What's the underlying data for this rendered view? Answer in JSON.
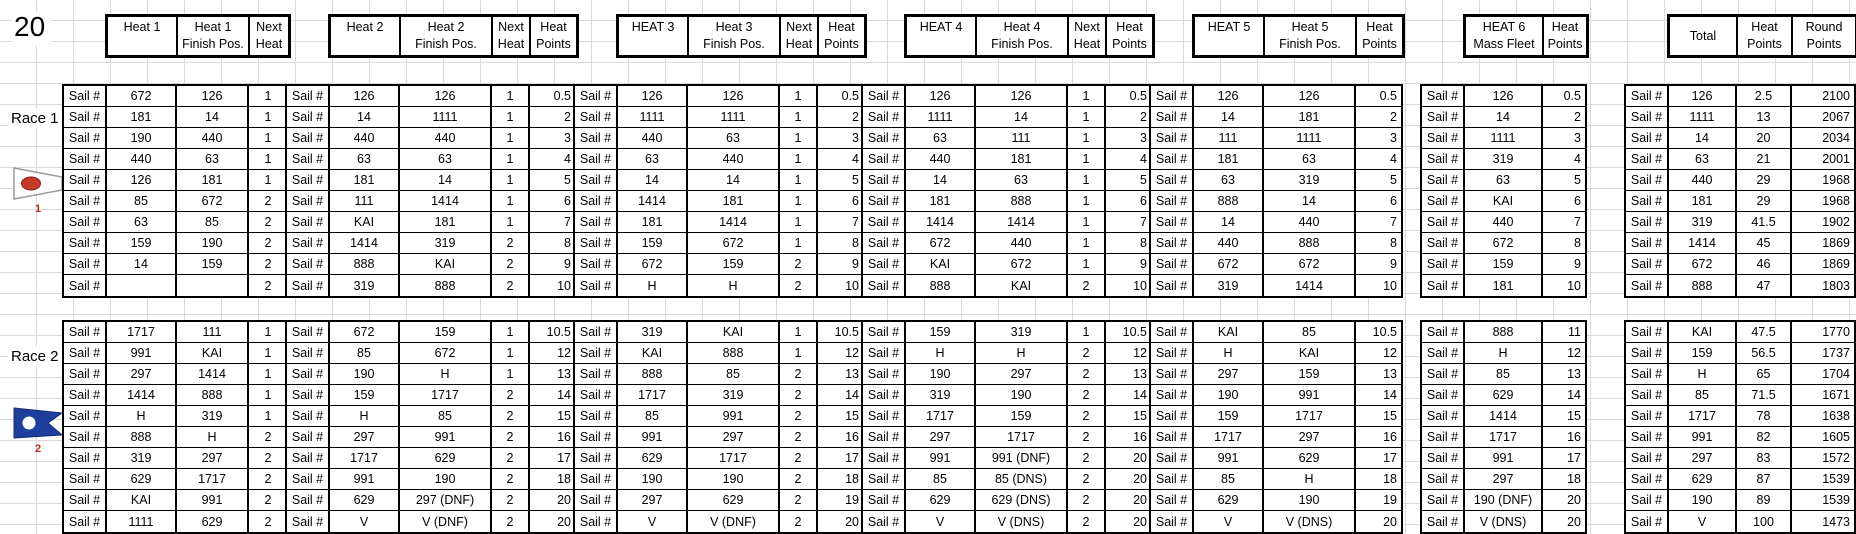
{
  "page": {
    "corner_number": "20"
  },
  "labels": {
    "sail": "Sail #"
  },
  "header_groups": [
    {
      "cols": [
        [
          "Heat 1",
          ""
        ],
        [
          "Heat 1",
          "Finish Pos."
        ],
        [
          "Next",
          "Heat"
        ]
      ]
    },
    {
      "cols": [
        [
          "Heat 2",
          ""
        ],
        [
          "Heat 2",
          "Finish Pos."
        ],
        [
          "Next",
          "Heat"
        ],
        [
          "Heat",
          "Points"
        ]
      ]
    },
    {
      "cols": [
        [
          "HEAT 3",
          ""
        ],
        [
          "Heat 3",
          "Finish Pos."
        ],
        [
          "Next",
          "Heat"
        ],
        [
          "Heat",
          "Points"
        ]
      ]
    },
    {
      "cols": [
        [
          "HEAT 4",
          ""
        ],
        [
          "Heat 4",
          "Finish Pos."
        ],
        [
          "Next",
          "Heat"
        ],
        [
          "Heat",
          "Points"
        ]
      ]
    },
    {
      "cols": [
        [
          "HEAT 5",
          ""
        ],
        [
          "Heat 5",
          "Finish Pos."
        ],
        [
          "Heat",
          "Points"
        ]
      ]
    },
    {
      "cols": [
        [
          "HEAT 6",
          "Mass Fleet"
        ],
        [
          "Heat",
          "Points"
        ]
      ]
    },
    {
      "cols": [
        [
          "Total",
          ""
        ],
        [
          "Heat",
          "Points"
        ],
        [
          "Round",
          "Points"
        ]
      ]
    }
  ],
  "races": [
    {
      "label": "Race 1",
      "flag_number": "1",
      "flag_color": "#c43b2a",
      "heats": {
        "heat1": [
          [
            "672",
            "126",
            "1"
          ],
          [
            "181",
            "14",
            "1"
          ],
          [
            "190",
            "440",
            "1"
          ],
          [
            "440",
            "63",
            "1"
          ],
          [
            "126",
            "181",
            "1"
          ],
          [
            "85",
            "672",
            "2"
          ],
          [
            "63",
            "85",
            "2"
          ],
          [
            "159",
            "190",
            "2"
          ],
          [
            "14",
            "159",
            "2"
          ],
          [
            "",
            "",
            "2"
          ]
        ],
        "heat2": [
          [
            "126",
            "126",
            "1",
            "0.5"
          ],
          [
            "14",
            "1111",
            "1",
            "2"
          ],
          [
            "440",
            "440",
            "1",
            "3"
          ],
          [
            "63",
            "63",
            "1",
            "4"
          ],
          [
            "181",
            "14",
            "1",
            "5"
          ],
          [
            "111",
            "1414",
            "1",
            "6"
          ],
          [
            "KAI",
            "181",
            "1",
            "7"
          ],
          [
            "1414",
            "319",
            "2",
            "8"
          ],
          [
            "888",
            "KAI",
            "2",
            "9"
          ],
          [
            "319",
            "888",
            "2",
            "10"
          ]
        ],
        "heat3": [
          [
            "126",
            "126",
            "1",
            "0.5"
          ],
          [
            "1111",
            "1111",
            "1",
            "2"
          ],
          [
            "440",
            "63",
            "1",
            "3"
          ],
          [
            "63",
            "440",
            "1",
            "4"
          ],
          [
            "14",
            "14",
            "1",
            "5"
          ],
          [
            "1414",
            "181",
            "1",
            "6"
          ],
          [
            "181",
            "1414",
            "1",
            "7"
          ],
          [
            "159",
            "672",
            "1",
            "8"
          ],
          [
            "672",
            "159",
            "2",
            "9"
          ],
          [
            "H",
            "H",
            "2",
            "10"
          ]
        ],
        "heat4": [
          [
            "126",
            "126",
            "1",
            "0.5"
          ],
          [
            "1111",
            "14",
            "1",
            "2"
          ],
          [
            "63",
            "111",
            "1",
            "3"
          ],
          [
            "440",
            "181",
            "1",
            "4"
          ],
          [
            "14",
            "63",
            "1",
            "5"
          ],
          [
            "181",
            "888",
            "1",
            "6"
          ],
          [
            "1414",
            "1414",
            "1",
            "7"
          ],
          [
            "672",
            "440",
            "1",
            "8"
          ],
          [
            "KAI",
            "672",
            "1",
            "9"
          ],
          [
            "888",
            "KAI",
            "2",
            "10"
          ]
        ],
        "heat5": [
          [
            "126",
            "126",
            "0.5"
          ],
          [
            "14",
            "181",
            "2"
          ],
          [
            "111",
            "1111",
            "3"
          ],
          [
            "181",
            "63",
            "4"
          ],
          [
            "63",
            "319",
            "5"
          ],
          [
            "888",
            "14",
            "6"
          ],
          [
            "14",
            "440",
            "7"
          ],
          [
            "440",
            "888",
            "8"
          ],
          [
            "672",
            "672",
            "9"
          ],
          [
            "319",
            "1414",
            "10"
          ]
        ],
        "heat6": [
          [
            "126",
            "0.5"
          ],
          [
            "14",
            "2"
          ],
          [
            "1111",
            "3"
          ],
          [
            "319",
            "4"
          ],
          [
            "63",
            "5"
          ],
          [
            "KAI",
            "6"
          ],
          [
            "440",
            "7"
          ],
          [
            "672",
            "8"
          ],
          [
            "159",
            "9"
          ],
          [
            "181",
            "10"
          ]
        ],
        "total": [
          [
            "126",
            "2.5",
            "2100"
          ],
          [
            "1111",
            "13",
            "2067"
          ],
          [
            "14",
            "20",
            "2034"
          ],
          [
            "63",
            "21",
            "2001"
          ],
          [
            "440",
            "29",
            "1968"
          ],
          [
            "181",
            "29",
            "1968"
          ],
          [
            "319",
            "41.5",
            "1902"
          ],
          [
            "1414",
            "45",
            "1869"
          ],
          [
            "672",
            "46",
            "1869"
          ],
          [
            "888",
            "47",
            "1803"
          ]
        ]
      }
    },
    {
      "label": "Race 2",
      "flag_number": "2",
      "flag_color": "#1e3e9e",
      "heats": {
        "heat1": [
          [
            "1717",
            "111",
            "1"
          ],
          [
            "991",
            "KAI",
            "1"
          ],
          [
            "297",
            "1414",
            "1"
          ],
          [
            "1414",
            "888",
            "1"
          ],
          [
            "H",
            "319",
            "1"
          ],
          [
            "888",
            "H",
            "2"
          ],
          [
            "319",
            "297",
            "2"
          ],
          [
            "629",
            "1717",
            "2"
          ],
          [
            "KAI",
            "991",
            "2"
          ],
          [
            "1111",
            "629",
            "2"
          ]
        ],
        "heat2": [
          [
            "672",
            "159",
            "1",
            "10.5"
          ],
          [
            "85",
            "672",
            "1",
            "12"
          ],
          [
            "190",
            "H",
            "1",
            "13"
          ],
          [
            "159",
            "1717",
            "2",
            "14"
          ],
          [
            "H",
            "85",
            "2",
            "15"
          ],
          [
            "297",
            "991",
            "2",
            "16"
          ],
          [
            "1717",
            "629",
            "2",
            "17"
          ],
          [
            "991",
            "190",
            "2",
            "18"
          ],
          [
            "629",
            "297 (DNF)",
            "2",
            "20"
          ],
          [
            "V",
            "V (DNF)",
            "2",
            "20"
          ]
        ],
        "heat3": [
          [
            "319",
            "KAI",
            "1",
            "10.5"
          ],
          [
            "KAI",
            "888",
            "1",
            "12"
          ],
          [
            "888",
            "85",
            "2",
            "13"
          ],
          [
            "1717",
            "319",
            "2",
            "14"
          ],
          [
            "85",
            "991",
            "2",
            "15"
          ],
          [
            "991",
            "297",
            "2",
            "16"
          ],
          [
            "629",
            "1717",
            "2",
            "17"
          ],
          [
            "190",
            "190",
            "2",
            "18"
          ],
          [
            "297",
            "629",
            "2",
            "19"
          ],
          [
            "V",
            "V (DNF)",
            "2",
            "20"
          ]
        ],
        "heat4": [
          [
            "159",
            "319",
            "1",
            "10.5"
          ],
          [
            "H",
            "H",
            "2",
            "12"
          ],
          [
            "190",
            "297",
            "2",
            "13"
          ],
          [
            "319",
            "190",
            "2",
            "14"
          ],
          [
            "1717",
            "159",
            "2",
            "15"
          ],
          [
            "297",
            "1717",
            "2",
            "16"
          ],
          [
            "991",
            "991 (DNF)",
            "2",
            "20"
          ],
          [
            "85",
            "85 (DNS)",
            "2",
            "20"
          ],
          [
            "629",
            "629 (DNS)",
            "2",
            "20"
          ],
          [
            "V",
            "V (DNS)",
            "2",
            "20"
          ]
        ],
        "heat5": [
          [
            "KAI",
            "85",
            "10.5"
          ],
          [
            "H",
            "KAI",
            "12"
          ],
          [
            "297",
            "159",
            "13"
          ],
          [
            "190",
            "991",
            "14"
          ],
          [
            "159",
            "1717",
            "15"
          ],
          [
            "1717",
            "297",
            "16"
          ],
          [
            "991",
            "629",
            "17"
          ],
          [
            "85",
            "H",
            "18"
          ],
          [
            "629",
            "190",
            "19"
          ],
          [
            "V",
            "V (DNS)",
            "20"
          ]
        ],
        "heat6": [
          [
            "888",
            "11"
          ],
          [
            "H",
            "12"
          ],
          [
            "85",
            "13"
          ],
          [
            "629",
            "14"
          ],
          [
            "1414",
            "15"
          ],
          [
            "1717",
            "16"
          ],
          [
            "991",
            "17"
          ],
          [
            "297",
            "18"
          ],
          [
            "190 (DNF)",
            "20"
          ],
          [
            "V (DNS)",
            "20"
          ]
        ],
        "total": [
          [
            "KAI",
            "47.5",
            "1770"
          ],
          [
            "159",
            "56.5",
            "1737"
          ],
          [
            "H",
            "65",
            "1704"
          ],
          [
            "85",
            "71.5",
            "1671"
          ],
          [
            "1717",
            "78",
            "1638"
          ],
          [
            "991",
            "82",
            "1605"
          ],
          [
            "297",
            "83",
            "1572"
          ],
          [
            "629",
            "87",
            "1539"
          ],
          [
            "190",
            "89",
            "1539"
          ],
          [
            "V",
            "100",
            "1473"
          ]
        ]
      }
    }
  ]
}
